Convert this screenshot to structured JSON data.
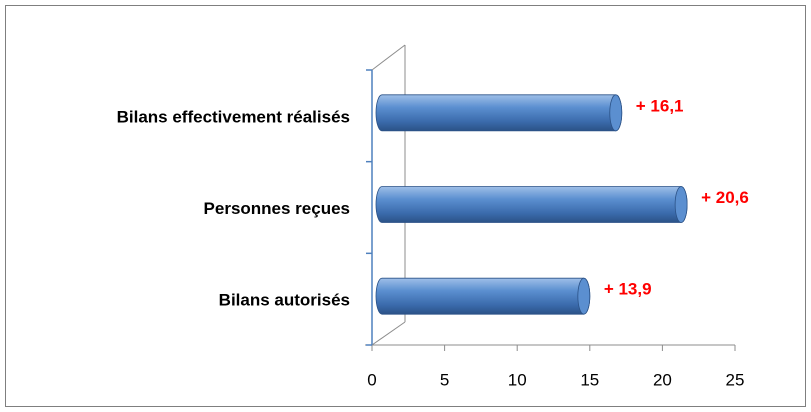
{
  "chart_data": {
    "type": "bar",
    "orientation": "horizontal",
    "categories": [
      "Bilans effectivement réalisés",
      "Personnes reçues",
      "Bilans autorisés"
    ],
    "values": [
      16.1,
      20.6,
      13.9
    ],
    "value_labels": [
      "+ 16,1",
      "+ 20,6",
      "+ 13,9"
    ],
    "color": "#4a7ebb",
    "value_label_color": "#ff0000",
    "xlim": [
      0,
      25
    ],
    "xticks": [
      0,
      5,
      10,
      15,
      20,
      25
    ],
    "grid": false
  }
}
